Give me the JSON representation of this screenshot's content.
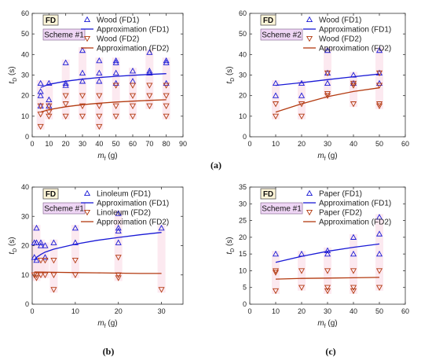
{
  "colors": {
    "fd1": "#1a1ad6",
    "fd2": "#b33a10",
    "fd_box_fill": "#fff6d8",
    "fd_box_stroke": "#555555",
    "scheme_fill": "#efd6f5",
    "scheme_stroke": "#7a5a86",
    "band": "#fbe3ec"
  },
  "chart_data": [
    {
      "id": "a-left",
      "type": "scatter",
      "badge": "FD",
      "scheme": "Scheme #1",
      "panel_letter": "",
      "xlabel_main": "m",
      "xlabel_sub": "f",
      "xlabel_unit": " (g)",
      "ylabel_main": "t",
      "ylabel_sub": "D",
      "ylabel_unit": " (s)",
      "xlim": [
        0,
        90
      ],
      "ylim": [
        0,
        60
      ],
      "xticks": [
        0,
        10,
        20,
        30,
        40,
        50,
        60,
        70,
        80,
        90
      ],
      "yticks": [
        0,
        10,
        20,
        30,
        40,
        50,
        60
      ],
      "legend": [
        "Wood (FD1)",
        "Approximation (FD1)",
        "Wood (FD2)",
        "Approximation (FD2)"
      ],
      "series": [
        {
          "name": "Wood (FD1)",
          "kind": "up",
          "color": "fd1",
          "points": [
            [
              5,
              26
            ],
            [
              5,
              22
            ],
            [
              5,
              20
            ],
            [
              5,
              15
            ],
            [
              10,
              26
            ],
            [
              10,
              18
            ],
            [
              10,
              15
            ],
            [
              20,
              36
            ],
            [
              20,
              26
            ],
            [
              20,
              25
            ],
            [
              30,
              42
            ],
            [
              30,
              31
            ],
            [
              30,
              27
            ],
            [
              40,
              37
            ],
            [
              40,
              31
            ],
            [
              40,
              27
            ],
            [
              50,
              37
            ],
            [
              50,
              36
            ],
            [
              50,
              31
            ],
            [
              50,
              26
            ],
            [
              60,
              32
            ],
            [
              60,
              27
            ],
            [
              70,
              41
            ],
            [
              70,
              32
            ],
            [
              70,
              31
            ],
            [
              80,
              37
            ],
            [
              80,
              36
            ],
            [
              80,
              26
            ]
          ]
        },
        {
          "name": "Approximation (FD1)",
          "kind": "curve",
          "color": "fd1",
          "points": [
            [
              5,
              24
            ],
            [
              10,
              25.5
            ],
            [
              20,
              27
            ],
            [
              30,
              28
            ],
            [
              40,
              28.8
            ],
            [
              50,
              29.4
            ],
            [
              60,
              29.9
            ],
            [
              70,
              30.3
            ],
            [
              80,
              30.7
            ]
          ]
        },
        {
          "name": "Wood (FD2)",
          "kind": "down",
          "color": "fd2",
          "points": [
            [
              5,
              15
            ],
            [
              5,
              11
            ],
            [
              5,
              5
            ],
            [
              10,
              15
            ],
            [
              10,
              12
            ],
            [
              10,
              10
            ],
            [
              20,
              20
            ],
            [
              20,
              16
            ],
            [
              20,
              10
            ],
            [
              30,
              20
            ],
            [
              30,
              15
            ],
            [
              30,
              10
            ],
            [
              40,
              20
            ],
            [
              40,
              15
            ],
            [
              40,
              10
            ],
            [
              40,
              5
            ],
            [
              50,
              25
            ],
            [
              50,
              15
            ],
            [
              50,
              10
            ],
            [
              60,
              25
            ],
            [
              60,
              20
            ],
            [
              60,
              15
            ],
            [
              60,
              10
            ],
            [
              70,
              25
            ],
            [
              70,
              20
            ],
            [
              70,
              15
            ],
            [
              80,
              25
            ],
            [
              80,
              20
            ],
            [
              80,
              15
            ],
            [
              80,
              10
            ]
          ]
        },
        {
          "name": "Approximation (FD2)",
          "kind": "curve",
          "color": "fd2",
          "points": [
            [
              5,
              12
            ],
            [
              10,
              13.2
            ],
            [
              20,
              14.6
            ],
            [
              30,
              15.6
            ],
            [
              40,
              16.3
            ],
            [
              50,
              16.9
            ],
            [
              60,
              17.3
            ],
            [
              70,
              17.7
            ],
            [
              80,
              18
            ]
          ]
        }
      ]
    },
    {
      "id": "a-right",
      "type": "scatter",
      "badge": "FD",
      "scheme": "Scheme #2",
      "panel_letter": "(a)",
      "xlabel_main": "m",
      "xlabel_sub": "f",
      "xlabel_unit": " (g)",
      "ylabel_main": "t",
      "ylabel_sub": "D",
      "ylabel_unit": " (s)",
      "xlim": [
        0,
        60
      ],
      "ylim": [
        0,
        60
      ],
      "xticks": [
        0,
        10,
        20,
        30,
        40,
        50,
        60
      ],
      "yticks": [
        0,
        10,
        20,
        30,
        40,
        50,
        60
      ],
      "legend": [
        "Wood (FD1)",
        "Approximation (FD1)",
        "Wood (FD2)",
        "Approximation (FD2)"
      ],
      "series": [
        {
          "name": "Wood (FD1)",
          "kind": "up",
          "color": "fd1",
          "points": [
            [
              10,
              26
            ],
            [
              10,
              20
            ],
            [
              20,
              26
            ],
            [
              20,
              20
            ],
            [
              30,
              42
            ],
            [
              30,
              31
            ],
            [
              30,
              26
            ],
            [
              40,
              30
            ],
            [
              40,
              26
            ],
            [
              50,
              42
            ],
            [
              50,
              31
            ],
            [
              50,
              26
            ]
          ]
        },
        {
          "name": "Approximation (FD1)",
          "kind": "curve",
          "color": "fd1",
          "points": [
            [
              10,
              25
            ],
            [
              20,
              26.3
            ],
            [
              30,
              27.8
            ],
            [
              40,
              29.2
            ],
            [
              50,
              30.5
            ]
          ]
        },
        {
          "name": "Wood (FD2)",
          "kind": "down",
          "color": "fd2",
          "points": [
            [
              10,
              16
            ],
            [
              10,
              10
            ],
            [
              20,
              16
            ],
            [
              20,
              10
            ],
            [
              30,
              31
            ],
            [
              30,
              21
            ],
            [
              30,
              20
            ],
            [
              40,
              26
            ],
            [
              40,
              25
            ],
            [
              40,
              16
            ],
            [
              50,
              31
            ],
            [
              50,
              25
            ],
            [
              50,
              16
            ],
            [
              50,
              15
            ]
          ]
        },
        {
          "name": "Approximation (FD2)",
          "kind": "curve",
          "color": "fd2",
          "points": [
            [
              10,
              12
            ],
            [
              20,
              16
            ],
            [
              30,
              19.5
            ],
            [
              40,
              22
            ],
            [
              50,
              23.8
            ]
          ]
        }
      ]
    },
    {
      "id": "b",
      "type": "scatter",
      "badge": "FD",
      "scheme": "Scheme #1",
      "panel_letter": "(b)",
      "xlabel_main": "m",
      "xlabel_sub": "f",
      "xlabel_unit": " (g)",
      "ylabel_main": "t",
      "ylabel_sub": "D",
      "ylabel_unit": " (s)",
      "xlim": [
        0,
        35
      ],
      "ylim": [
        0,
        40
      ],
      "xticks": [
        0,
        10,
        20,
        30
      ],
      "yticks": [
        0,
        10,
        20,
        30,
        40
      ],
      "legend": [
        "Linoleum (FD1)",
        "Approximation (FD1)",
        "Linoleum (FD2)",
        "Approximation (FD2)"
      ],
      "series": [
        {
          "name": "Linoleum (FD1)",
          "kind": "up",
          "color": "fd1",
          "points": [
            [
              0.5,
              21
            ],
            [
              0.5,
              16
            ],
            [
              1,
              26
            ],
            [
              1,
              21
            ],
            [
              1,
              15
            ],
            [
              2,
              21
            ],
            [
              2,
              20
            ],
            [
              3,
              20
            ],
            [
              3,
              16
            ],
            [
              5,
              21
            ],
            [
              10,
              26
            ],
            [
              10,
              21
            ],
            [
              20,
              31
            ],
            [
              20,
              26
            ],
            [
              20,
              25
            ],
            [
              20,
              21
            ],
            [
              30,
              26
            ]
          ]
        },
        {
          "name": "Approximation (FD1)",
          "kind": "curve",
          "color": "fd1",
          "points": [
            [
              0.5,
              15
            ],
            [
              1,
              16
            ],
            [
              2,
              17
            ],
            [
              3,
              17.8
            ],
            [
              5,
              18.8
            ],
            [
              10,
              20.5
            ],
            [
              15,
              21.8
            ],
            [
              20,
              22.8
            ],
            [
              25,
              23.7
            ],
            [
              30,
              24.5
            ]
          ]
        },
        {
          "name": "Linoleum (FD2)",
          "kind": "down",
          "color": "fd2",
          "points": [
            [
              0.5,
              10
            ],
            [
              1,
              10
            ],
            [
              1,
              9
            ],
            [
              2,
              15
            ],
            [
              2,
              10
            ],
            [
              3,
              15
            ],
            [
              3,
              10
            ],
            [
              5,
              15
            ],
            [
              5,
              10
            ],
            [
              5,
              5
            ],
            [
              10,
              15
            ],
            [
              10,
              10
            ],
            [
              20,
              16
            ],
            [
              20,
              10
            ],
            [
              20,
              9
            ],
            [
              30,
              5
            ]
          ]
        },
        {
          "name": "Approximation (FD2)",
          "kind": "curve",
          "color": "fd2",
          "points": [
            [
              0.5,
              11
            ],
            [
              5,
              10.9
            ],
            [
              10,
              10.8
            ],
            [
              15,
              10.7
            ],
            [
              20,
              10.6
            ],
            [
              25,
              10.5
            ],
            [
              30,
              10.5
            ]
          ]
        }
      ]
    },
    {
      "id": "c",
      "type": "scatter",
      "badge": "FD",
      "scheme": "Scheme #1",
      "panel_letter": "(c)",
      "xlabel_main": "m",
      "xlabel_sub": "f",
      "xlabel_unit": " (g)",
      "ylabel_main": "t",
      "ylabel_sub": "D",
      "ylabel_unit": " (s)",
      "xlim": [
        0,
        60
      ],
      "ylim": [
        0,
        35
      ],
      "xticks": [
        0,
        10,
        20,
        30,
        40,
        50,
        60
      ],
      "yticks": [
        0,
        5,
        10,
        15,
        20,
        25,
        30,
        35
      ],
      "legend": [
        "Paper (FD1)",
        "Approximation (FD1)",
        "Paper (FD2)",
        "Approximation (FD2)"
      ],
      "series": [
        {
          "name": "Paper (FD1)",
          "kind": "up",
          "color": "fd1",
          "points": [
            [
              10,
              15
            ],
            [
              20,
              15
            ],
            [
              30,
              16
            ],
            [
              30,
              15
            ],
            [
              40,
              20
            ],
            [
              40,
              15
            ],
            [
              50,
              26
            ],
            [
              50,
              21
            ],
            [
              50,
              15
            ]
          ]
        },
        {
          "name": "Approximation (FD1)",
          "kind": "curve",
          "color": "fd1",
          "points": [
            [
              10,
              12.5
            ],
            [
              20,
              14.3
            ],
            [
              30,
              15.8
            ],
            [
              40,
              17
            ],
            [
              50,
              18
            ]
          ]
        },
        {
          "name": "Paper (FD2)",
          "kind": "down",
          "color": "fd2",
          "points": [
            [
              10,
              10
            ],
            [
              10,
              9.5
            ],
            [
              10,
              4
            ],
            [
              20,
              10
            ],
            [
              20,
              5
            ],
            [
              30,
              10
            ],
            [
              30,
              5
            ],
            [
              30,
              4
            ],
            [
              40,
              10
            ],
            [
              40,
              5
            ],
            [
              40,
              4
            ],
            [
              50,
              10
            ],
            [
              50,
              5
            ]
          ]
        },
        {
          "name": "Approximation (FD2)",
          "kind": "curve",
          "color": "fd2",
          "points": [
            [
              10,
              7.5
            ],
            [
              20,
              7.7
            ],
            [
              30,
              7.8
            ],
            [
              40,
              7.9
            ],
            [
              50,
              8
            ]
          ]
        }
      ]
    }
  ]
}
